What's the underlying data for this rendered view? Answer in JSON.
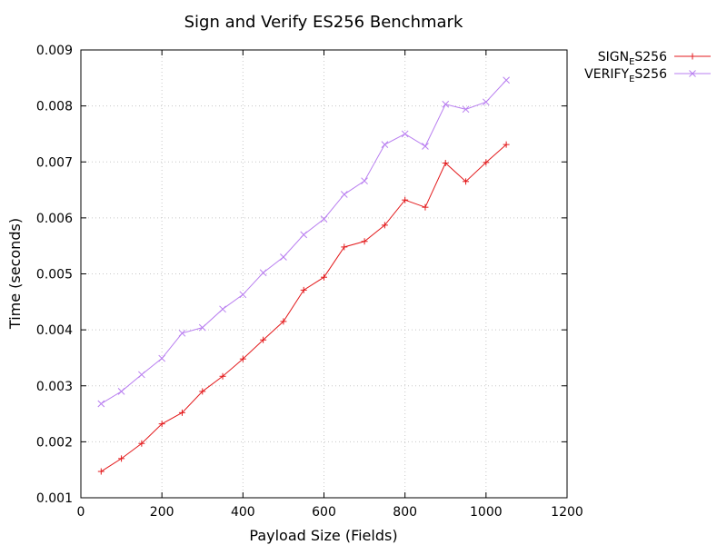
{
  "chart_data": {
    "type": "line",
    "title": "Sign and Verify ES256 Benchmark",
    "xlabel": "Payload Size (Fields)",
    "ylabel": "Time (seconds)",
    "xlim": [
      0,
      1200
    ],
    "ylim": [
      0.001,
      0.009
    ],
    "xticks": [
      "0",
      "200",
      "400",
      "600",
      "800",
      "1000",
      "1200"
    ],
    "yticks": [
      "0.001",
      "0.002",
      "0.003",
      "0.004",
      "0.005",
      "0.006",
      "0.007",
      "0.008",
      "0.009"
    ],
    "grid": true,
    "legend_position": "outside-top-right",
    "x": [
      50,
      100,
      150,
      200,
      250,
      300,
      350,
      400,
      450,
      500,
      550,
      600,
      650,
      700,
      750,
      800,
      850,
      900,
      950,
      1000,
      1050
    ],
    "series": [
      {
        "name": "SIGN_ES256",
        "legend_main": "SIGN",
        "legend_sub": "E",
        "legend_rest": "S256",
        "color": "#e31a1c",
        "marker": "plus",
        "values": [
          0.00147,
          0.0017,
          0.00197,
          0.00232,
          0.00252,
          0.0029,
          0.00317,
          0.00348,
          0.00382,
          0.00415,
          0.00471,
          0.00494,
          0.00548,
          0.00558,
          0.00587,
          0.00632,
          0.00619,
          0.00698,
          0.00665,
          0.00699,
          0.00731
        ]
      },
      {
        "name": "VERIFY_ES256",
        "legend_main": "VERIFY",
        "legend_sub": "E",
        "legend_rest": "S256",
        "color": "#b97ff0",
        "marker": "cross",
        "values": [
          0.00268,
          0.0029,
          0.0032,
          0.00349,
          0.00394,
          0.00404,
          0.00437,
          0.00463,
          0.00502,
          0.0053,
          0.0057,
          0.00598,
          0.00642,
          0.00666,
          0.00731,
          0.0075,
          0.00728,
          0.00803,
          0.00794,
          0.00807,
          0.00846
        ]
      }
    ]
  }
}
